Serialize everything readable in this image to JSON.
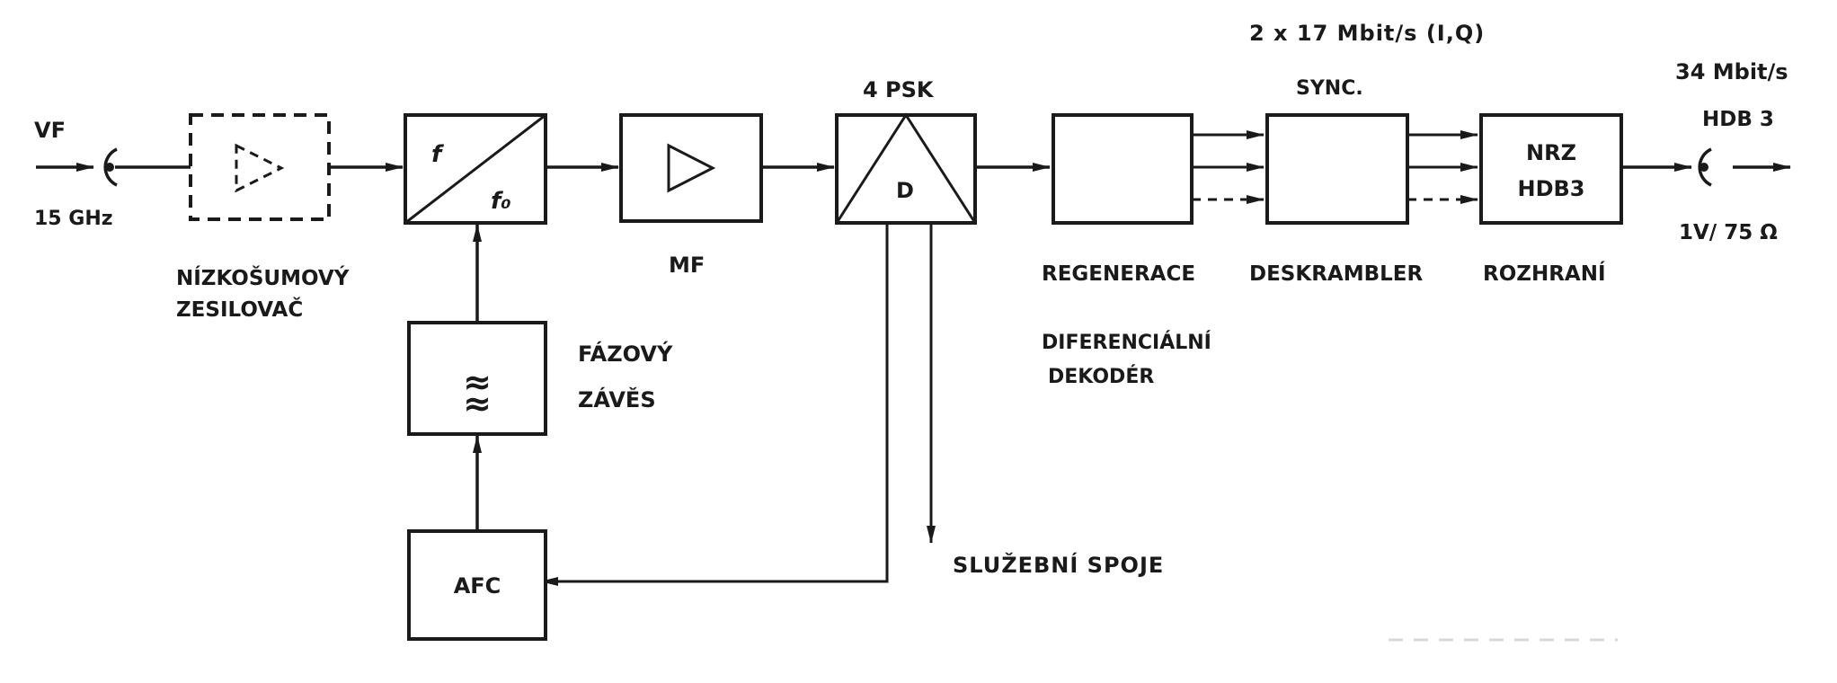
{
  "input": {
    "label": "VF",
    "freq": "15 GHz"
  },
  "lna": {
    "label_line1": "NÍZKOŠUMOVÝ",
    "label_line2": "ZESILOVAČ"
  },
  "mixer": {
    "sym_top": "f",
    "sym_bottom": "f₀"
  },
  "if_amp": {
    "label": "MF"
  },
  "demod": {
    "title": "4 PSK",
    "inner": "D"
  },
  "pll": {
    "label_line1": "FÁZOVÝ",
    "label_line2": "ZÁVĚS",
    "symbol": "≈"
  },
  "afc": {
    "label": "AFC"
  },
  "service": {
    "label": "SLUŽEBNÍ SPOJE"
  },
  "regen": {
    "label": "REGENERACE",
    "label2_line1": "DIFERENCIÁLNÍ",
    "label2_line2": "DEKODÉR"
  },
  "descrambler": {
    "label": "DESKRAMBLER",
    "sync": "SYNC.",
    "rate": "2 x 17 Mbit/s (I,Q)"
  },
  "interface": {
    "inner_line1": "NRZ",
    "inner_line2": "HDB3",
    "label": "ROZHRANÍ"
  },
  "output": {
    "rate": "34 Mbit/s",
    "code": "HDB 3",
    "level": "1V/ 75 Ω"
  }
}
